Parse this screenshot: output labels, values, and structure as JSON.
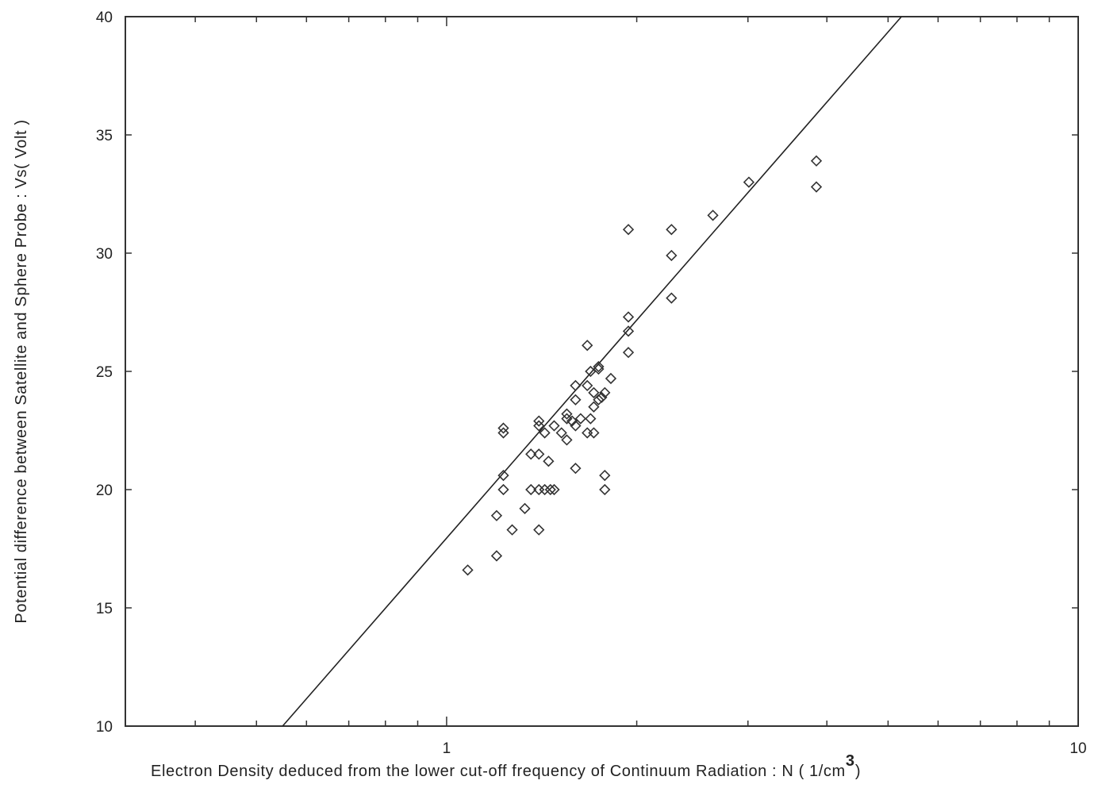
{
  "chart_data": {
    "type": "scatter",
    "title": "",
    "xlabel": "Electron Density deduced from the lower cut-off frequency of Continuum Radiation : N ( 1/cm",
    "xlabel_superscript": "3",
    "xlabel_close": ")",
    "ylabel": "Potential difference between Satellite and Sphere Probe : Vs( Volt )",
    "x_scale": "log",
    "xlim": [
      0.31,
      10
    ],
    "ylim": [
      10,
      40
    ],
    "x_tick_labels": [
      "1",
      "10"
    ],
    "x_tick_values": [
      1,
      10
    ],
    "y_tick_labels": [
      "10",
      "15",
      "20",
      "25",
      "30",
      "35",
      "40"
    ],
    "y_tick_values": [
      10,
      15,
      20,
      25,
      30,
      35,
      40
    ],
    "grid": false,
    "marker": "open-diamond",
    "series": [
      {
        "type": "scatter",
        "points": [
          [
            1.08,
            16.6
          ],
          [
            1.2,
            17.2
          ],
          [
            1.2,
            18.9
          ],
          [
            1.23,
            22.6
          ],
          [
            1.23,
            22.4
          ],
          [
            1.23,
            20.6
          ],
          [
            1.23,
            20.0
          ],
          [
            1.27,
            18.3
          ],
          [
            1.33,
            19.2
          ],
          [
            1.36,
            21.5
          ],
          [
            1.36,
            20.0
          ],
          [
            1.4,
            22.9
          ],
          [
            1.4,
            22.7
          ],
          [
            1.4,
            21.5
          ],
          [
            1.4,
            20.0
          ],
          [
            1.4,
            18.3
          ],
          [
            1.43,
            22.4
          ],
          [
            1.43,
            20.0
          ],
          [
            1.45,
            21.2
          ],
          [
            1.46,
            20.0
          ],
          [
            1.48,
            22.7
          ],
          [
            1.48,
            20.0
          ],
          [
            1.52,
            22.4
          ],
          [
            1.55,
            23.2
          ],
          [
            1.55,
            23.0
          ],
          [
            1.55,
            22.1
          ],
          [
            1.58,
            22.9
          ],
          [
            1.6,
            24.4
          ],
          [
            1.6,
            23.8
          ],
          [
            1.6,
            22.7
          ],
          [
            1.6,
            20.9
          ],
          [
            1.63,
            23.0
          ],
          [
            1.67,
            26.1
          ],
          [
            1.67,
            24.4
          ],
          [
            1.67,
            22.4
          ],
          [
            1.69,
            25.0
          ],
          [
            1.69,
            23.0
          ],
          [
            1.71,
            24.1
          ],
          [
            1.71,
            23.5
          ],
          [
            1.71,
            22.4
          ],
          [
            1.74,
            25.2
          ],
          [
            1.74,
            25.1
          ],
          [
            1.74,
            23.8
          ],
          [
            1.76,
            23.9
          ],
          [
            1.78,
            24.1
          ],
          [
            1.78,
            20.6
          ],
          [
            1.78,
            20.0
          ],
          [
            1.82,
            24.7
          ],
          [
            1.94,
            31.0
          ],
          [
            1.94,
            27.3
          ],
          [
            1.94,
            26.7
          ],
          [
            1.94,
            25.8
          ],
          [
            2.27,
            31.0
          ],
          [
            2.27,
            29.9
          ],
          [
            2.27,
            28.1
          ],
          [
            2.64,
            31.6
          ],
          [
            3.01,
            33.0
          ],
          [
            3.85,
            33.9
          ],
          [
            3.85,
            32.8
          ]
        ]
      },
      {
        "type": "line",
        "label": "",
        "points": [
          [
            0.55,
            10
          ],
          [
            5.25,
            40
          ]
        ]
      }
    ]
  }
}
